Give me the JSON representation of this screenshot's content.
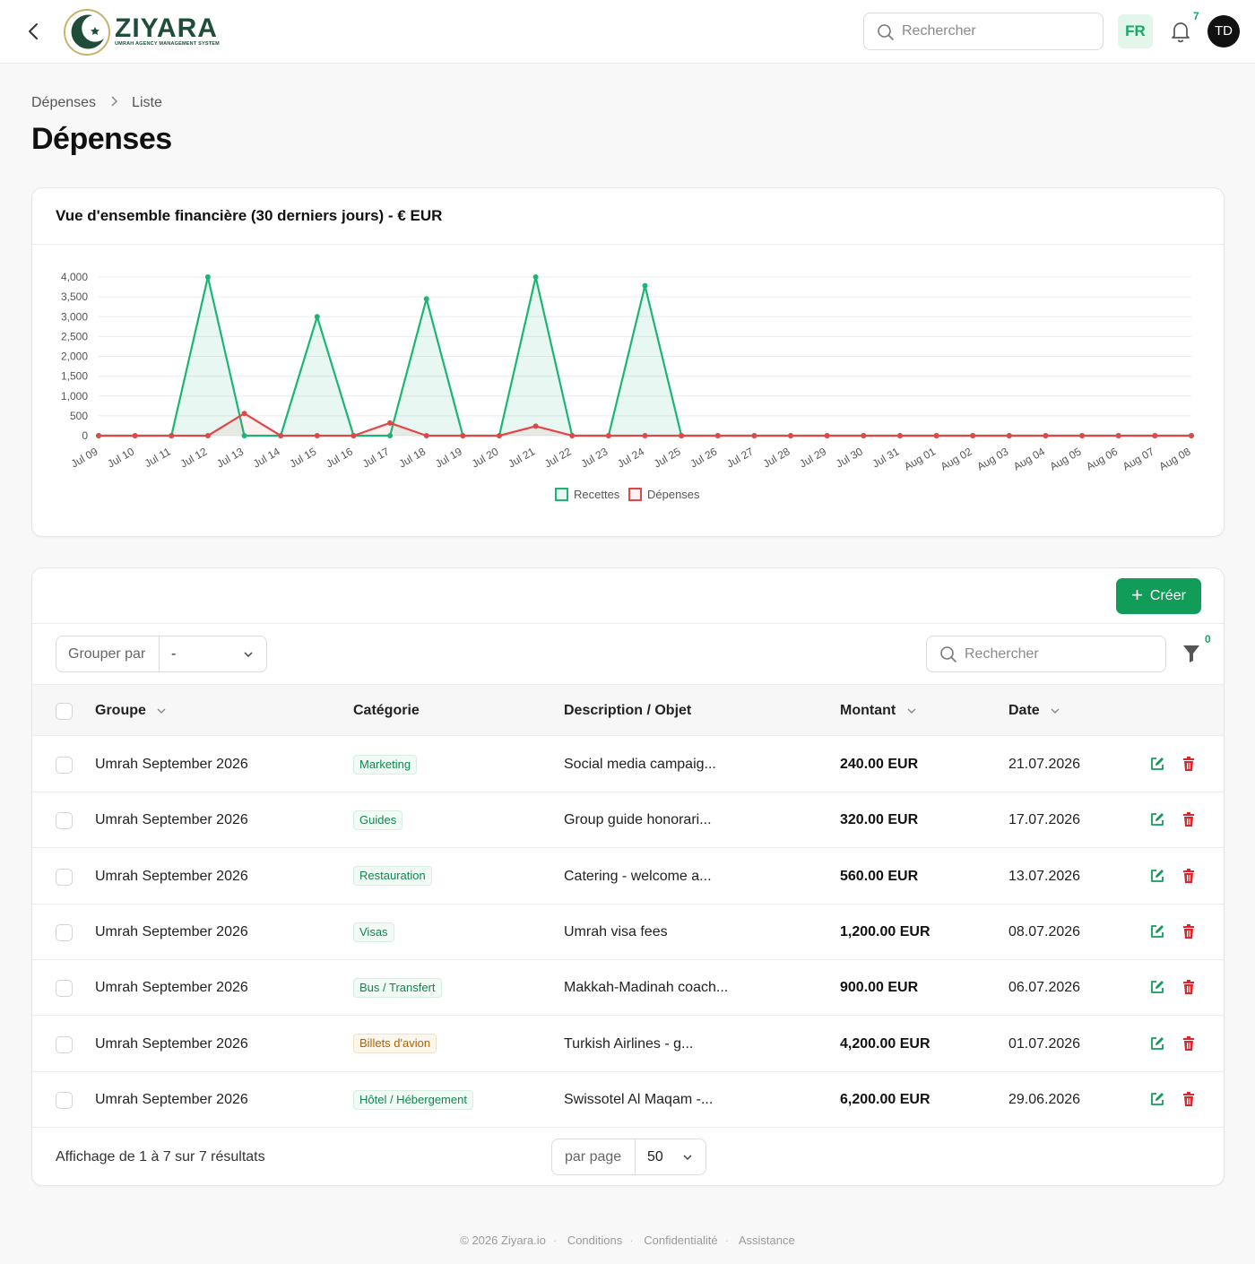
{
  "header": {
    "logo_text": "ZIYARA",
    "logo_subtitle": "UMRAH AGENCY MANAGEMENT SYSTEM",
    "search_placeholder": "Rechercher",
    "language": "FR",
    "notification_count": "7",
    "user_initials": "TD"
  },
  "breadcrumb": {
    "parent": "Dépenses",
    "current": "Liste"
  },
  "page_title": "Dépenses",
  "chart_card": {
    "title": "Vue d'ensemble financière (30 derniers jours) - € EUR"
  },
  "chart_data": {
    "type": "line",
    "title": "Vue d'ensemble financière (30 derniers jours) - € EUR",
    "x": [
      "Jul 09",
      "Jul 10",
      "Jul 11",
      "Jul 12",
      "Jul 13",
      "Jul 14",
      "Jul 15",
      "Jul 16",
      "Jul 17",
      "Jul 18",
      "Jul 19",
      "Jul 20",
      "Jul 21",
      "Jul 22",
      "Jul 23",
      "Jul 24",
      "Jul 25",
      "Jul 26",
      "Jul 27",
      "Jul 28",
      "Jul 29",
      "Jul 30",
      "Jul 31",
      "Aug 01",
      "Aug 02",
      "Aug 03",
      "Aug 04",
      "Aug 05",
      "Aug 06",
      "Aug 07",
      "Aug 08"
    ],
    "series": [
      {
        "name": "Recettes",
        "color": "#1bb574",
        "fill": "rgba(27,181,116,0.10)",
        "values": [
          0,
          0,
          0,
          4000,
          0,
          0,
          3000,
          0,
          0,
          3450,
          0,
          0,
          4000,
          0,
          0,
          3780,
          0,
          0,
          0,
          0,
          0,
          0,
          0,
          0,
          0,
          0,
          0,
          0,
          0,
          0,
          0
        ]
      },
      {
        "name": "Dépenses",
        "color": "#e04848",
        "fill": "rgba(224,72,72,0.08)",
        "values": [
          0,
          0,
          0,
          0,
          560,
          0,
          0,
          0,
          320,
          0,
          0,
          0,
          240,
          0,
          0,
          0,
          0,
          0,
          0,
          0,
          0,
          0,
          0,
          0,
          0,
          0,
          0,
          0,
          0,
          0,
          0
        ]
      }
    ],
    "ylim": [
      0,
      4000
    ],
    "yticks": [
      0,
      500,
      1000,
      1500,
      2000,
      2500,
      3000,
      3500,
      4000
    ],
    "ytick_labels": [
      "0",
      "500",
      "1,000",
      "1,500",
      "2,000",
      "2,500",
      "3,000",
      "3,500",
      "4,000"
    ],
    "grid": true,
    "legend_position": "bottom"
  },
  "table": {
    "create_label": "Créer",
    "group_by_label": "Grouper par",
    "group_by_value": "-",
    "search_placeholder": "Rechercher",
    "filter_count": "0",
    "columns": {
      "group": "Groupe",
      "category": "Catégorie",
      "description": "Description / Objet",
      "amount": "Montant",
      "date": "Date"
    },
    "rows": [
      {
        "group": "Umrah September 2026",
        "category": "Marketing",
        "category_color": "green",
        "description": "Social media campaig...",
        "amount": "240.00 EUR",
        "date": "21.07.2026"
      },
      {
        "group": "Umrah September 2026",
        "category": "Guides",
        "category_color": "green",
        "description": "Group guide honorari...",
        "amount": "320.00 EUR",
        "date": "17.07.2026"
      },
      {
        "group": "Umrah September 2026",
        "category": "Restauration",
        "category_color": "green",
        "description": "Catering - welcome a...",
        "amount": "560.00 EUR",
        "date": "13.07.2026"
      },
      {
        "group": "Umrah September 2026",
        "category": "Visas",
        "category_color": "green",
        "description": "Umrah visa fees",
        "amount": "1,200.00 EUR",
        "date": "08.07.2026"
      },
      {
        "group": "Umrah September 2026",
        "category": "Bus / Transfert",
        "category_color": "green",
        "description": "Makkah-Madinah coach...",
        "amount": "900.00 EUR",
        "date": "06.07.2026"
      },
      {
        "group": "Umrah September 2026",
        "category": "Billets d'avion",
        "category_color": "orange",
        "description": "Turkish Airlines - g...",
        "amount": "4,200.00 EUR",
        "date": "01.07.2026"
      },
      {
        "group": "Umrah September 2026",
        "category": "Hôtel / Hébergement",
        "category_color": "green",
        "description": "Swissotel Al Maqam -...",
        "amount": "6,200.00 EUR",
        "date": "29.06.2026"
      }
    ],
    "results_text": "Affichage de 1 à 7 sur 7 résultats",
    "per_page_label": "par page",
    "per_page_value": "50"
  },
  "footer": {
    "copyright": "© 2026 Ziyara.io",
    "links": [
      "Conditions",
      "Confidentialité",
      "Assistance"
    ]
  },
  "colors": {
    "brand_green": "#119c5a",
    "delete_red": "#e0242b",
    "edit_green": "#119c5a"
  }
}
